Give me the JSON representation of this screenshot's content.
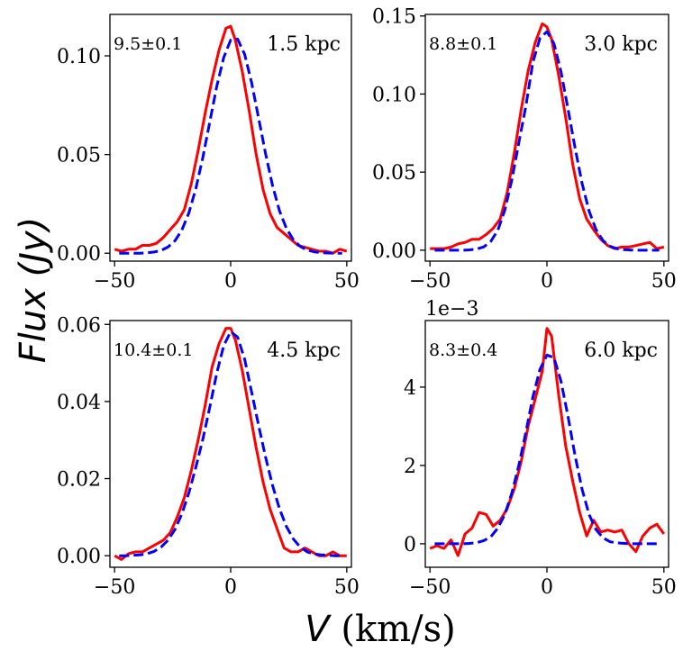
{
  "figure": {
    "ylabel": "Flux (Jy)",
    "xlabel_symbol": "V",
    "xlabel_unit": " (km/s)"
  },
  "chart_data": [
    {
      "type": "line",
      "label": "1.5 kpc",
      "sigma_label": "9.5±0.1",
      "xlim": [
        -52,
        52
      ],
      "ylim": [
        -0.004,
        0.121
      ],
      "xticks": [
        -50,
        0,
        50
      ],
      "xtick_labels": [
        "−50",
        "0",
        "50"
      ],
      "yticks": [
        0.0,
        0.05,
        0.1
      ],
      "ytick_labels": [
        "0.00",
        "0.05",
        "0.10"
      ],
      "offset_text": "",
      "series": [
        {
          "name": "observed",
          "color": "#ff0000",
          "style": "solid",
          "x": [
            -50,
            -47,
            -44,
            -41,
            -38,
            -35,
            -32,
            -29,
            -26,
            -23,
            -20,
            -17,
            -14,
            -11,
            -8,
            -5,
            -2,
            0,
            2,
            5,
            8,
            11,
            14,
            17,
            20,
            23,
            26,
            29,
            32,
            35,
            38,
            41,
            44,
            47,
            50
          ],
          "y": [
            0.002,
            0.001,
            0.002,
            0.002,
            0.004,
            0.004,
            0.005,
            0.008,
            0.012,
            0.016,
            0.022,
            0.035,
            0.052,
            0.071,
            0.088,
            0.103,
            0.114,
            0.115,
            0.108,
            0.092,
            0.072,
            0.05,
            0.032,
            0.02,
            0.013,
            0.01,
            0.007,
            0.004,
            0.003,
            0.002,
            0.001,
            0.001,
            0.0,
            0.002,
            0.001
          ]
        },
        {
          "name": "gaussian fit",
          "color": "#0000ff",
          "style": "dashed",
          "x": [
            -48,
            -45,
            -42,
            -39,
            -36,
            -33,
            -30,
            -27,
            -24,
            -21,
            -18,
            -15,
            -12,
            -9,
            -6,
            -3,
            0,
            3,
            6,
            9,
            12,
            15,
            18,
            21,
            24,
            27,
            30,
            33,
            36,
            39,
            42,
            45,
            48
          ],
          "y": [
            0,
            0,
            0,
            0,
            0.0002,
            0.0006,
            0.0014,
            0.0031,
            0.0063,
            0.0118,
            0.0204,
            0.0327,
            0.0485,
            0.0665,
            0.0844,
            0.0992,
            0.108,
            0.1085,
            0.1008,
            0.0865,
            0.0687,
            0.0505,
            0.0344,
            0.0216,
            0.0126,
            0.0068,
            0.0034,
            0.0016,
            0.0007,
            0.0003,
            0.0001,
            0,
            0
          ]
        }
      ]
    },
    {
      "type": "line",
      "label": "3.0 kpc",
      "sigma_label": "8.8±0.1",
      "xlim": [
        -52,
        52
      ],
      "ylim": [
        -0.007,
        0.151
      ],
      "xticks": [
        -50,
        0,
        50
      ],
      "xtick_labels": [
        "−50",
        "0",
        "50"
      ],
      "yticks": [
        0.0,
        0.05,
        0.1,
        0.15
      ],
      "ytick_labels": [
        "0.00",
        "0.05",
        "0.10",
        "0.15"
      ],
      "offset_text": "",
      "series": [
        {
          "name": "observed",
          "color": "#ff0000",
          "style": "solid",
          "x": [
            -50,
            -47,
            -44,
            -41,
            -38,
            -35,
            -32,
            -29,
            -26,
            -23,
            -20,
            -17,
            -14,
            -11,
            -8,
            -5,
            -2,
            0,
            2,
            5,
            8,
            11,
            14,
            17,
            20,
            23,
            26,
            29,
            32,
            35,
            38,
            41,
            44,
            47,
            50
          ],
          "y": [
            0.001,
            0.001,
            0.001,
            0.002,
            0.004,
            0.005,
            0.007,
            0.007,
            0.01,
            0.014,
            0.02,
            0.037,
            0.062,
            0.09,
            0.115,
            0.133,
            0.145,
            0.143,
            0.135,
            0.112,
            0.085,
            0.055,
            0.033,
            0.02,
            0.013,
            0.007,
            0.003,
            0.001,
            0.002,
            0.002,
            0.003,
            0.004,
            0.005,
            0.001,
            0.002
          ]
        },
        {
          "name": "gaussian fit",
          "color": "#0000ff",
          "style": "dashed",
          "x": [
            -48,
            -45,
            -42,
            -39,
            -36,
            -33,
            -30,
            -27,
            -24,
            -21,
            -18,
            -15,
            -12,
            -9,
            -6,
            -3,
            0,
            3,
            6,
            9,
            12,
            15,
            18,
            21,
            24,
            27,
            30,
            33,
            36,
            39,
            42,
            45,
            48
          ],
          "y": [
            0,
            0,
            0,
            0,
            0,
            0.0002,
            0.0007,
            0.0021,
            0.0056,
            0.0128,
            0.0258,
            0.0452,
            0.0688,
            0.0923,
            0.1203,
            0.1358,
            0.14,
            0.1323,
            0.1143,
            0.0903,
            0.0656,
            0.043,
            0.0252,
            0.0131,
            0.0061,
            0.0025,
            0.0009,
            0.0003,
            0.0001,
            0,
            0,
            0,
            0
          ]
        }
      ]
    },
    {
      "type": "line",
      "label": "4.5 kpc",
      "sigma_label": "10.4±0.1",
      "xlim": [
        -52,
        52
      ],
      "ylim": [
        -0.003,
        0.061
      ],
      "xticks": [
        -50,
        0,
        50
      ],
      "xtick_labels": [
        "−50",
        "0",
        "50"
      ],
      "yticks": [
        0.0,
        0.02,
        0.04,
        0.06
      ],
      "ytick_labels": [
        "0.00",
        "0.02",
        "0.04",
        "0.06"
      ],
      "offset_text": "",
      "series": [
        {
          "name": "observed",
          "color": "#ff0000",
          "style": "solid",
          "x": [
            -50,
            -47,
            -44,
            -41,
            -38,
            -35,
            -32,
            -29,
            -26,
            -23,
            -20,
            -17,
            -14,
            -11,
            -8,
            -5,
            -2,
            0,
            2,
            5,
            8,
            11,
            14,
            17,
            20,
            23,
            26,
            29,
            32,
            35,
            38,
            41,
            44,
            47,
            50
          ],
          "y": [
            0.0,
            -0.001,
            0.0005,
            0.001,
            0.001,
            0.002,
            0.003,
            0.004,
            0.006,
            0.01,
            0.015,
            0.022,
            0.03,
            0.039,
            0.049,
            0.055,
            0.059,
            0.059,
            0.056,
            0.048,
            0.038,
            0.028,
            0.019,
            0.012,
            0.007,
            0.002,
            0.001,
            0.001,
            0.002,
            0.001,
            0.0,
            0.0,
            0.001,
            0.0,
            0.0
          ]
        },
        {
          "name": "gaussian fit",
          "color": "#0000ff",
          "style": "dashed",
          "x": [
            -48,
            -45,
            -42,
            -39,
            -36,
            -33,
            -30,
            -27,
            -24,
            -21,
            -18,
            -15,
            -12,
            -9,
            -6,
            -3,
            0,
            3,
            6,
            9,
            12,
            15,
            18,
            21,
            24,
            27,
            30,
            33,
            36,
            39,
            42,
            45,
            48
          ],
          "y": [
            0,
            0,
            0.0001,
            0.0002,
            0.0005,
            0.0011,
            0.0022,
            0.004,
            0.0068,
            0.0109,
            0.0163,
            0.0229,
            0.0302,
            0.0385,
            0.0473,
            0.0545,
            0.0581,
            0.0567,
            0.051,
            0.0425,
            0.0339,
            0.0256,
            0.0183,
            0.0122,
            0.0076,
            0.0043,
            0.0022,
            0.001,
            0.0004,
            0.0002,
            0.0001,
            0,
            0
          ]
        }
      ]
    },
    {
      "type": "line",
      "label": "6.0 kpc",
      "sigma_label": "8.3±0.4",
      "xlim": [
        -52,
        52
      ],
      "ylim": [
        -0.6,
        5.7
      ],
      "xticks": [
        -50,
        0,
        50
      ],
      "xtick_labels": [
        "−50",
        "0",
        "50"
      ],
      "yticks": [
        0,
        2,
        4
      ],
      "ytick_labels": [
        "0",
        "2",
        "4"
      ],
      "offset_text": "1e−3",
      "series": [
        {
          "name": "observed",
          "color": "#ff0000",
          "style": "solid",
          "x": [
            -50,
            -47,
            -44,
            -41,
            -38,
            -35,
            -32,
            -29,
            -26,
            -23,
            -20,
            -17,
            -14,
            -11,
            -8,
            -5,
            -2,
            0,
            2,
            5,
            8,
            11,
            14,
            17,
            20,
            23,
            26,
            29,
            32,
            35,
            38,
            41,
            44,
            47,
            50
          ],
          "y": [
            -0.12,
            -0.05,
            -0.12,
            0.1,
            -0.3,
            0.25,
            0.4,
            0.8,
            0.75,
            0.45,
            0.6,
            0.9,
            1.4,
            2.1,
            3.0,
            3.7,
            4.4,
            5.5,
            5.3,
            3.8,
            2.5,
            1.6,
            0.8,
            0.2,
            0.6,
            0.3,
            0.35,
            0.3,
            0.35,
            0.0,
            -0.2,
            0.2,
            0.4,
            0.5,
            0.25
          ]
        },
        {
          "name": "gaussian fit",
          "color": "#0000ff",
          "style": "dashed",
          "x": [
            -48,
            -45,
            -42,
            -39,
            -36,
            -33,
            -30,
            -27,
            -24,
            -21,
            -18,
            -15,
            -12,
            -9,
            -6,
            -3,
            0,
            3,
            6,
            9,
            12,
            15,
            18,
            21,
            24,
            27,
            30,
            33,
            36,
            39,
            42,
            45,
            48
          ],
          "y": [
            0,
            0,
            0,
            0,
            0,
            0.01,
            0.03,
            0.08,
            0.18,
            0.4,
            0.75,
            1.3,
            2.0,
            2.85,
            3.75,
            4.45,
            4.82,
            4.75,
            4.15,
            3.25,
            2.25,
            1.4,
            0.75,
            0.36,
            0.15,
            0.05,
            0.02,
            0.01,
            0,
            0,
            0,
            0,
            0
          ]
        }
      ]
    }
  ]
}
